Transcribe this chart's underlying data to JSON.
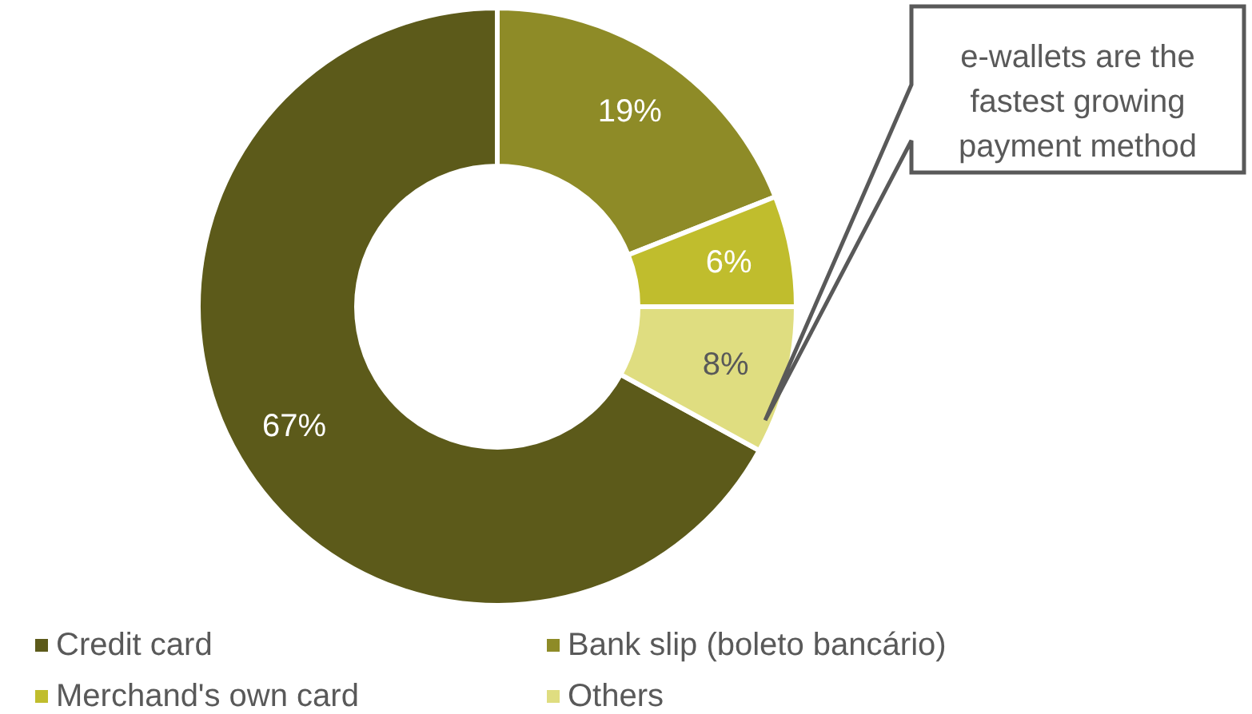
{
  "chart_data": {
    "type": "donut",
    "categories": [
      "Credit card",
      "Bank slip (boleto bancário)",
      "Merchand's own card",
      "Others"
    ],
    "values": [
      67,
      19,
      6,
      8
    ],
    "value_labels": [
      "67%",
      "19%",
      "6%",
      "8%"
    ],
    "colors": [
      "#5c5a1a",
      "#8e8b27",
      "#c0bd2d",
      "#dfdd80"
    ],
    "legend": "bottom",
    "annotations": [
      {
        "text": "e-wallets are the fastest growing payment method",
        "x": "Others"
      }
    ]
  }
}
